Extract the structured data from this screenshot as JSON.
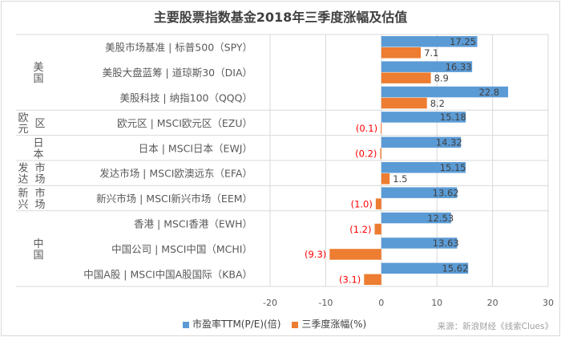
{
  "chart_data": {
    "type": "bar",
    "orientation": "horizontal",
    "title": "主要股票指数基金2018年三季度涨幅及估值",
    "groups": [
      {
        "name": "美国",
        "categories": [
          "美股市场基准 | 标普500（SPY）",
          "美股大盘蓝筹 | 道琼斯30（DIA）",
          "美股科技 | 纳指100（QQQ）"
        ]
      },
      {
        "name": "欧元区",
        "categories": [
          "欧元区 | MSCI欧元区（EZU）"
        ]
      },
      {
        "name": "日本",
        "categories": [
          "日本 | MSCI日本（EWJ）"
        ]
      },
      {
        "name": "发达市场",
        "categories": [
          "发达市场 | MSCI欧澳远东（EFA）"
        ]
      },
      {
        "name": "新兴市场",
        "categories": [
          "新兴市场 | MSCI新兴市场（EEM）"
        ]
      },
      {
        "name": "中国",
        "categories": [
          "香港 | MSCI香港（EWH）",
          "中国公司 | MSCI中国（MCHI）",
          "中国A股 | MSCI中国A股国际（KBA）"
        ]
      }
    ],
    "series": [
      {
        "name": "市盈率TTM(P/E)(倍)",
        "color": "#5b9bd5",
        "values": [
          17.25,
          16.33,
          22.8,
          15.18,
          14.32,
          15.15,
          13.62,
          12.53,
          13.63,
          15.62
        ],
        "labels": [
          "17.25",
          "16.33",
          "22.8",
          "15.18",
          "14.32",
          "15.15",
          "13.62",
          "12.53",
          "13.63",
          "15.62"
        ]
      },
      {
        "name": "三季度涨幅(%)",
        "color": "#ed7d31",
        "values": [
          7.1,
          8.9,
          8.2,
          -0.1,
          -0.2,
          1.5,
          -1.0,
          -1.2,
          -9.3,
          -3.1
        ],
        "labels": [
          "7.1",
          "8.9",
          "8.2",
          "(0.1)",
          "(0.2)",
          "1.5",
          "(1.0)",
          "(1.2)",
          "(9.3)",
          "(3.1)"
        ]
      }
    ],
    "xlim": [
      -20,
      30
    ],
    "xticks": [
      "-20",
      "-10",
      "0",
      "10",
      "20",
      "30"
    ],
    "grid": true,
    "legend": "bottom",
    "negative_label_color": "#ff0000"
  },
  "source": "来源：新浪财经《线索Clues》"
}
